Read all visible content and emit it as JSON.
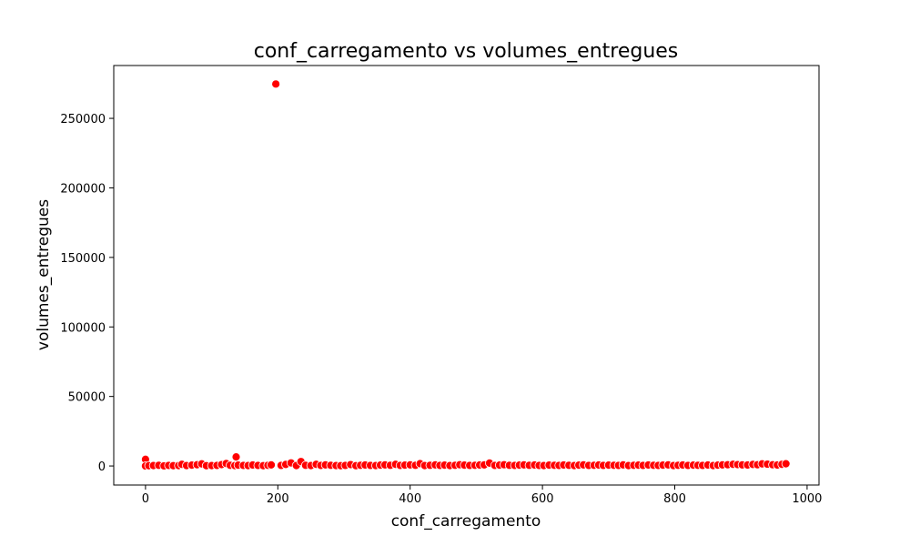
{
  "chart_data": {
    "type": "scatter",
    "title": "conf_carregamento vs volumes_entregues",
    "xlabel": "conf_carregamento",
    "ylabel": "volumes_entregues",
    "xlim": [
      -48,
      1018
    ],
    "ylim": [
      -13700,
      288000
    ],
    "xticks": [
      0,
      200,
      400,
      600,
      800,
      1000
    ],
    "yticks": [
      0,
      50000,
      100000,
      150000,
      200000,
      250000
    ],
    "grid": false,
    "legend": "none",
    "marker_color": "#ff0000",
    "marker_edge_color": "#ffffff",
    "x": [
      0,
      0,
      5,
      12,
      20,
      28,
      35,
      42,
      50,
      55,
      62,
      70,
      78,
      85,
      92,
      100,
      108,
      115,
      122,
      128,
      135,
      137,
      140,
      148,
      155,
      162,
      170,
      178,
      185,
      190,
      197,
      205,
      212,
      220,
      228,
      235,
      242,
      250,
      258,
      265,
      272,
      280,
      288,
      295,
      302,
      310,
      318,
      325,
      332,
      340,
      348,
      355,
      362,
      370,
      378,
      385,
      392,
      400,
      408,
      415,
      422,
      430,
      438,
      445,
      452,
      460,
      468,
      475,
      482,
      490,
      498,
      505,
      512,
      520,
      528,
      535,
      542,
      550,
      558,
      565,
      572,
      580,
      588,
      595,
      602,
      610,
      618,
      625,
      632,
      640,
      648,
      655,
      662,
      670,
      678,
      685,
      692,
      700,
      708,
      715,
      722,
      730,
      738,
      745,
      752,
      760,
      768,
      775,
      782,
      790,
      798,
      805,
      812,
      820,
      828,
      835,
      842,
      850,
      858,
      865,
      872,
      880,
      888,
      895,
      902,
      910,
      918,
      925,
      932,
      940,
      948,
      955,
      962,
      968
    ],
    "y": [
      4800,
      0,
      200,
      300,
      500,
      100,
      400,
      200,
      300,
      1200,
      300,
      600,
      900,
      1500,
      200,
      300,
      400,
      1000,
      1800,
      500,
      300,
      6500,
      600,
      400,
      300,
      700,
      400,
      200,
      500,
      800,
      274700,
      400,
      1100,
      2200,
      300,
      3200,
      500,
      300,
      1200,
      400,
      800,
      500,
      300,
      200,
      400,
      1000,
      200,
      500,
      700,
      400,
      300,
      600,
      800,
      500,
      1200,
      400,
      600,
      800,
      500,
      1700,
      300,
      500,
      800,
      400,
      600,
      300,
      500,
      900,
      600,
      400,
      500,
      700,
      800,
      2100,
      400,
      600,
      900,
      500,
      400,
      600,
      800,
      500,
      700,
      400,
      300,
      600,
      500,
      400,
      700,
      500,
      300,
      600,
      800,
      400,
      500,
      700,
      400,
      600,
      500,
      400,
      800,
      300,
      500,
      600,
      400,
      700,
      500,
      400,
      600,
      800,
      300,
      500,
      700,
      400,
      600,
      500,
      400,
      700,
      300,
      600,
      800,
      900,
      1200,
      1000,
      800,
      700,
      1100,
      900,
      1500,
      1300,
      900,
      700,
      1200,
      1600
    ]
  }
}
